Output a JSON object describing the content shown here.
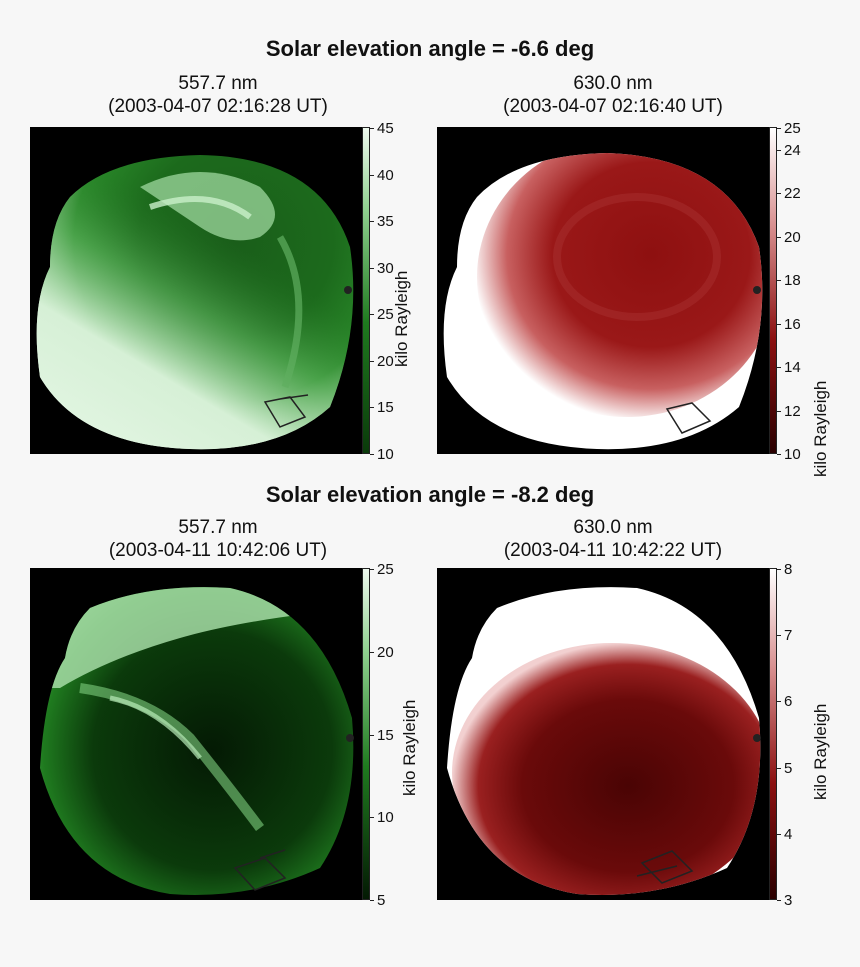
{
  "figure": {
    "rows": [
      {
        "title": "Solar elevation angle = -6.6 deg",
        "panels": [
          {
            "wavelength": "557.7 nm",
            "timestamp": "(2003-04-07 02:16:28 UT)",
            "colormap": "green",
            "colorbar": {
              "label": "kilo Rayleigh",
              "min": 10,
              "max": 45,
              "ticks": [
                10,
                15,
                20,
                25,
                30,
                35,
                40,
                45
              ]
            }
          },
          {
            "wavelength": "630.0 nm",
            "timestamp": "(2003-04-07 02:16:40 UT)",
            "colormap": "red",
            "colorbar": {
              "label": "kilo Rayleigh",
              "min": 10,
              "max": 25,
              "ticks": [
                10,
                12,
                14,
                16,
                18,
                20,
                22,
                24,
                25
              ]
            }
          }
        ]
      },
      {
        "title": "Solar elevation angle = -8.2 deg",
        "panels": [
          {
            "wavelength": "557.7 nm",
            "timestamp": "(2003-04-11 10:42:06 UT)",
            "colormap": "green",
            "colorbar": {
              "label": "kilo Rayleigh",
              "min": 5,
              "max": 25,
              "ticks": [
                5,
                10,
                15,
                20,
                25
              ]
            }
          },
          {
            "wavelength": "630.0 nm",
            "timestamp": "(2003-04-11 10:42:22 UT)",
            "colormap": "red",
            "colorbar": {
              "label": "kilo Rayleigh",
              "min": 3,
              "max": 8,
              "ticks": [
                3,
                4,
                5,
                6,
                7,
                8
              ]
            }
          }
        ]
      }
    ]
  },
  "colors": {
    "green_low": "#0a3a0a",
    "green_mid": "#1f7a1f",
    "green_high": "#e8f8e8",
    "red_low": "#3a0000",
    "red_mid": "#8b1010",
    "red_high": "#ffffff"
  },
  "chart_data": [
    {
      "type": "heatmap",
      "title": "Solar elevation angle = -6.6 deg",
      "subtitle": "557.7 nm (2003-04-07 02:16:28 UT)",
      "colorbar_label": "kilo Rayleigh",
      "zlim": [
        10,
        45
      ]
    },
    {
      "type": "heatmap",
      "title": "Solar elevation angle = -6.6 deg",
      "subtitle": "630.0 nm (2003-04-07 02:16:40 UT)",
      "colorbar_label": "kilo Rayleigh",
      "zlim": [
        10,
        25
      ]
    },
    {
      "type": "heatmap",
      "title": "Solar elevation angle = -8.2 deg",
      "subtitle": "557.7 nm (2003-04-11 10:42:06 UT)",
      "colorbar_label": "kilo Rayleigh",
      "zlim": [
        5,
        25
      ]
    },
    {
      "type": "heatmap",
      "title": "Solar elevation angle = -8.2 deg",
      "subtitle": "630.0 nm (2003-04-11 10:42:22 UT)",
      "colorbar_label": "kilo Rayleigh",
      "zlim": [
        3,
        8
      ]
    }
  ]
}
